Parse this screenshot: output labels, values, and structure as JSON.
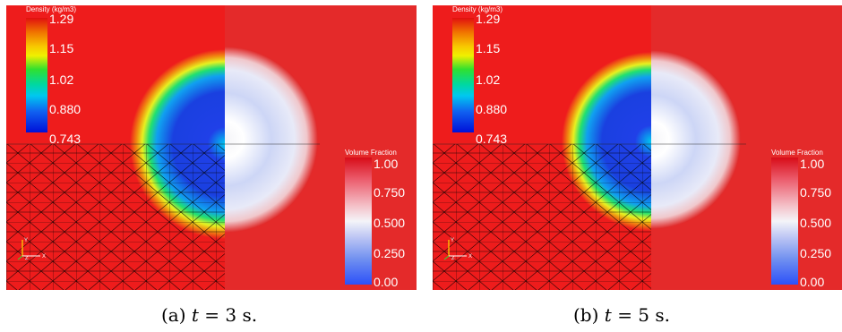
{
  "panels": [
    {
      "density_colorbar": {
        "title": "Density (kg/m3)",
        "ticks": [
          "1.29",
          "1.15",
          "1.02",
          "0.880",
          "0.743"
        ]
      },
      "vf_colorbar": {
        "title": "Volume Fraction",
        "ticks": [
          "1.00",
          "0.750",
          "0.500",
          "0.250",
          "0.00"
        ]
      },
      "axes": {
        "y": "Y",
        "z": "Z",
        "x": "X"
      },
      "caption": {
        "label": "(a)",
        "var": "t",
        "eq": "= 3 s."
      }
    },
    {
      "density_colorbar": {
        "title": "Density (kg/m3)",
        "ticks": [
          "1.29",
          "1.15",
          "1.02",
          "0.880",
          "0.743"
        ]
      },
      "vf_colorbar": {
        "title": "Volume Fraction",
        "ticks": [
          "1.00",
          "0.750",
          "0.500",
          "0.250",
          "0.00"
        ]
      },
      "axes": {
        "y": "Y",
        "z": "Z",
        "x": "X"
      },
      "caption": {
        "label": "(b)",
        "var": "t",
        "eq": "= 5 s."
      }
    }
  ],
  "colors": {
    "background_red": "#ee1c1c",
    "mesh_line": "#000000"
  }
}
